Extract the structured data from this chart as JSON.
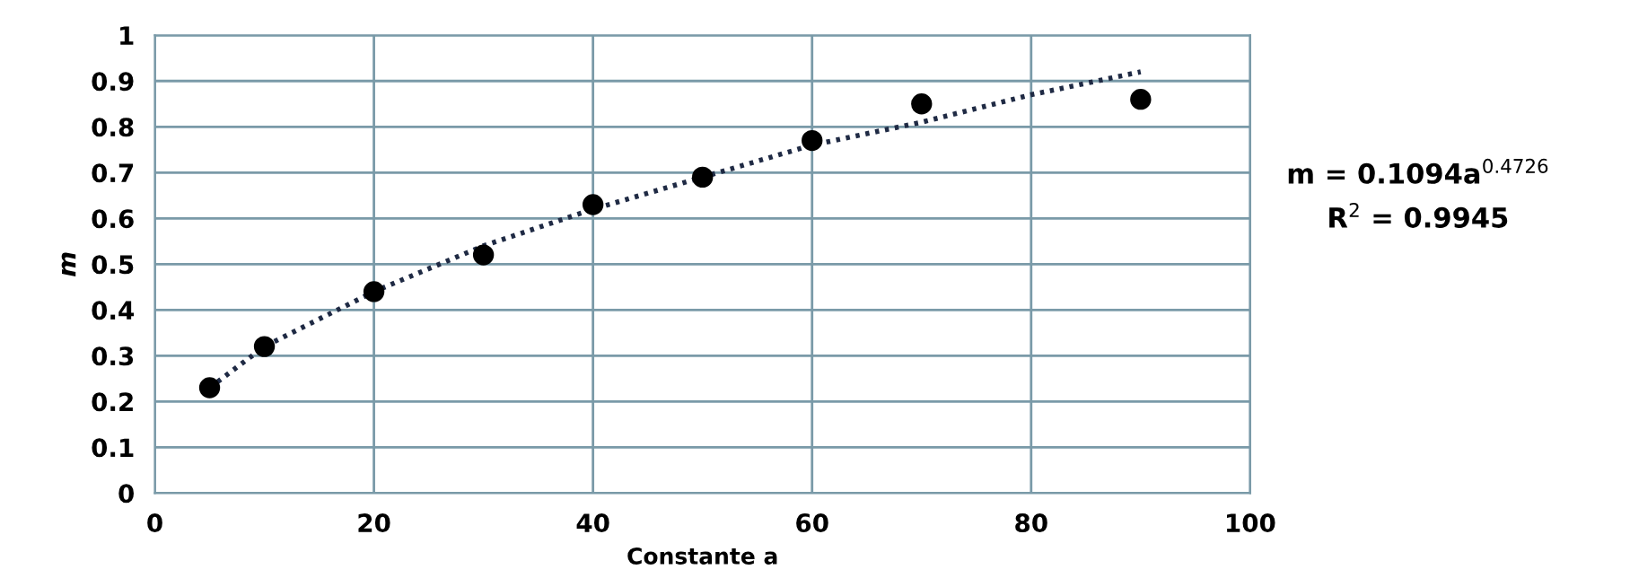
{
  "chart_data": {
    "type": "scatter",
    "xlabel": "Constante a",
    "ylabel": "m",
    "xlim": [
      0,
      100
    ],
    "xticks": [
      0,
      20,
      40,
      60,
      80,
      100
    ],
    "ylim": [
      0,
      1
    ],
    "yticks": [
      0,
      0.1,
      0.2,
      0.3,
      0.4,
      0.5,
      0.6,
      0.7,
      0.8,
      0.9,
      1
    ],
    "grid": true,
    "series": [
      {
        "color": "#000000",
        "marker": "circle",
        "x": [
          5,
          10,
          20,
          30,
          40,
          50,
          60,
          70,
          90
        ],
        "values": [
          0.23,
          0.32,
          0.44,
          0.52,
          0.63,
          0.69,
          0.77,
          0.85,
          0.86
        ]
      },
      {
        "type": "line",
        "color": "#1f2a44",
        "line_style": "dotted",
        "x": [
          5,
          10,
          20,
          30,
          40,
          50,
          60,
          70,
          80,
          90
        ],
        "values": [
          0.23,
          0.32,
          0.44,
          0.54,
          0.62,
          0.69,
          0.76,
          0.81,
          0.87,
          0.92
        ]
      }
    ],
    "annotations": [
      "m = 0.1094a$^{0.4726}$",
      "R$^{2}$ = 0.9945"
    ]
  }
}
